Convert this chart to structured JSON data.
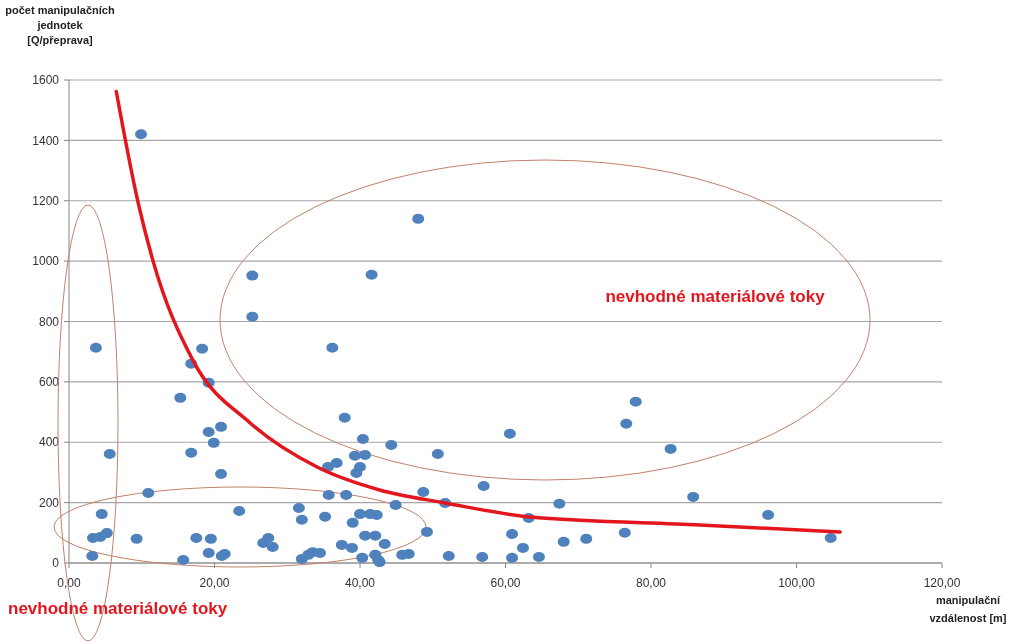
{
  "chart_data": {
    "type": "scatter",
    "xlabel": "manipulační vzdálenost [m]",
    "ylabel": "počet manipulačních jednotek [Q/přeprava]",
    "xlim": [
      0,
      120
    ],
    "ylim": [
      0,
      1600
    ],
    "xticks": [
      {
        "value": 0,
        "label": "0,00"
      },
      {
        "value": 20,
        "label": "20,00"
      },
      {
        "value": 40,
        "label": "40,00"
      },
      {
        "value": 60,
        "label": "60,00"
      },
      {
        "value": 80,
        "label": "80,00"
      },
      {
        "value": 100,
        "label": "100,00"
      },
      {
        "value": 120,
        "label": "120,00"
      }
    ],
    "yticks": [
      0,
      200,
      400,
      600,
      800,
      1000,
      1200,
      1400,
      1600
    ],
    "grid": "y",
    "marker": "circle",
    "annotations": [
      "nevhodné materiálové toky",
      "nevhodné materiálové toky"
    ],
    "series": [
      {
        "color": "#4f81bd",
        "x": [
          9.9,
          25.2,
          41.6,
          25.2,
          3.7,
          18.3,
          16.8,
          36.2,
          48.0,
          19.2,
          15.3,
          5.6,
          16.8,
          19.2,
          20.9,
          19.9,
          20.9,
          10.9,
          4.5,
          3.3,
          4.3,
          5.2,
          3.2,
          9.3,
          15.7,
          17.5,
          19.5,
          19.2,
          21.4,
          21.0,
          23.4,
          26.7,
          27.4,
          28.0,
          31.6,
          32.0,
          32.0,
          32.9,
          33.5,
          34.5,
          35.2,
          35.7,
          37.9,
          38.1,
          35.6,
          36.8,
          40.4,
          39.3,
          40.7,
          40.0,
          39.5,
          37.5,
          38.9,
          39.0,
          40.0,
          41.4,
          40.7,
          42.1,
          40.3,
          42.1,
          42.5,
          44.3,
          50.7,
          60.6,
          77.9,
          76.6,
          82.7,
          85.8,
          57.0,
          48.7,
          51.7,
          44.9,
          67.4,
          63.2,
          42.3,
          43.4,
          49.2,
          60.9,
          62.4,
          68.0,
          71.1,
          76.4,
          45.8,
          46.7,
          52.2,
          56.8,
          60.9,
          64.6,
          42.7,
          96.1,
          104.7
        ],
        "values": [
          1420,
          952,
          955,
          816,
          713,
          710,
          660,
          713,
          1140,
          597,
          547,
          361,
          365,
          434,
          451,
          398,
          295,
          232,
          162,
          83,
          86,
          99,
          23,
          80,
          10,
          83,
          80,
          33,
          30,
          23,
          172,
          66,
          83,
          53,
          182,
          143,
          13,
          27,
          36,
          33,
          153,
          225,
          481,
          225,
          318,
          331,
          411,
          355,
          358,
          318,
          298,
          60,
          50,
          133,
          162,
          162,
          90,
          90,
          17,
          27,
          10,
          391,
          361,
          428,
          534,
          461,
          378,
          219,
          255,
          235,
          199,
          192,
          196,
          149,
          159,
          63,
          103,
          96,
          50,
          70,
          80,
          100,
          27,
          30,
          23,
          20,
          17,
          20,
          3,
          159,
          83
        ]
      },
      {
        "type": "line",
        "color": "#e3161e",
        "marker": "none",
        "x": [
          6.5,
          9.5,
          11.5,
          17.0,
          24.9,
          34.1,
          42.7,
          51.7,
          63.2,
          86.7,
          106
        ],
        "values": [
          1562,
          1194,
          1005,
          673,
          464,
          318,
          242,
          199,
          153,
          126,
          103
        ]
      }
    ]
  }
}
